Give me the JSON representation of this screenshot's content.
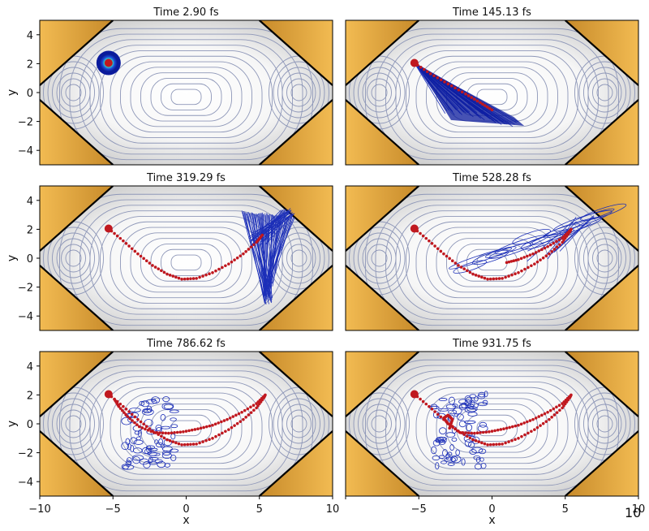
{
  "page_number": "10",
  "colors": {
    "contour": "#8e97b8",
    "wall_fill": "#e5a93a",
    "wall_edge": "#000000",
    "trajectory": "#c0181f",
    "wavepacket": "#1c2fb8",
    "wavepacket_core": "#0a1a9c"
  },
  "chart_data": {
    "type": "contour",
    "panels": [
      {
        "title": "Time    2.90 fs",
        "packet": "gaussian",
        "trajectory": [
          [
            -5.3,
            2.05
          ]
        ]
      },
      {
        "title": "Time    145.13 fs",
        "packet": "fan-compact",
        "trajectory": [
          [
            -5.3,
            2.05
          ],
          [
            -4.2,
            1.3
          ],
          [
            -3.0,
            0.6
          ],
          [
            -1.8,
            -0.1
          ],
          [
            -0.8,
            -0.7
          ],
          [
            0.0,
            -1.2
          ]
        ]
      },
      {
        "title": "Time    319.29 fs",
        "packet": "fan-wide",
        "trajectory": [
          [
            -5.3,
            2.05
          ],
          [
            -4.3,
            1.2
          ],
          [
            -3.3,
            0.3
          ],
          [
            -2.3,
            -0.5
          ],
          [
            -1.3,
            -1.1
          ],
          [
            -0.3,
            -1.45
          ],
          [
            0.7,
            -1.4
          ],
          [
            1.8,
            -1.0
          ],
          [
            2.9,
            -0.4
          ],
          [
            3.9,
            0.3
          ],
          [
            4.8,
            1.1
          ],
          [
            5.2,
            1.6
          ]
        ]
      },
      {
        "title": "Time    528.28 fs",
        "packet": "ribbons",
        "trajectory": [
          [
            -5.3,
            2.05
          ],
          [
            -4.3,
            1.2
          ],
          [
            -3.3,
            0.3
          ],
          [
            -2.3,
            -0.5
          ],
          [
            -1.3,
            -1.1
          ],
          [
            -0.3,
            -1.45
          ],
          [
            0.7,
            -1.4
          ],
          [
            1.8,
            -1.0
          ],
          [
            2.9,
            -0.4
          ],
          [
            3.9,
            0.3
          ],
          [
            4.8,
            1.1
          ],
          [
            5.3,
            1.8
          ],
          [
            5.4,
            2.0
          ],
          [
            4.8,
            1.4
          ],
          [
            3.8,
            0.8
          ],
          [
            2.8,
            0.3
          ],
          [
            1.8,
            -0.1
          ],
          [
            1.0,
            -0.3
          ]
        ]
      },
      {
        "title": "Time    786.62 fs",
        "packet": "scattered-left",
        "trajectory": [
          [
            -5.3,
            2.05
          ],
          [
            -4.3,
            1.2
          ],
          [
            -3.3,
            0.3
          ],
          [
            -2.3,
            -0.5
          ],
          [
            -1.3,
            -1.1
          ],
          [
            -0.3,
            -1.45
          ],
          [
            0.7,
            -1.4
          ],
          [
            1.8,
            -1.0
          ],
          [
            2.9,
            -0.4
          ],
          [
            3.9,
            0.3
          ],
          [
            4.8,
            1.1
          ],
          [
            5.3,
            1.8
          ],
          [
            5.4,
            2.0
          ],
          [
            4.8,
            1.4
          ],
          [
            3.8,
            0.8
          ],
          [
            2.8,
            0.3
          ],
          [
            1.8,
            -0.1
          ],
          [
            0.8,
            -0.35
          ],
          [
            -0.2,
            -0.55
          ],
          [
            -1.2,
            -0.65
          ],
          [
            -2.2,
            -0.6
          ],
          [
            -3.2,
            -0.2
          ],
          [
            -4.0,
            0.5
          ],
          [
            -4.6,
            1.2
          ],
          [
            -4.9,
            1.7
          ]
        ]
      },
      {
        "title": "Time    931.75 fs",
        "packet": "scattered-split",
        "trajectory": [
          [
            -5.3,
            2.05
          ],
          [
            -4.3,
            1.2
          ],
          [
            -3.3,
            0.3
          ],
          [
            -2.3,
            -0.5
          ],
          [
            -1.3,
            -1.1
          ],
          [
            -0.3,
            -1.45
          ],
          [
            0.7,
            -1.4
          ],
          [
            1.8,
            -1.0
          ],
          [
            2.9,
            -0.4
          ],
          [
            3.9,
            0.3
          ],
          [
            4.8,
            1.1
          ],
          [
            5.3,
            1.8
          ],
          [
            5.4,
            2.0
          ],
          [
            4.8,
            1.4
          ],
          [
            3.8,
            0.8
          ],
          [
            2.8,
            0.3
          ],
          [
            1.8,
            -0.1
          ],
          [
            0.8,
            -0.35
          ],
          [
            -0.2,
            -0.55
          ],
          [
            -1.2,
            -0.65
          ],
          [
            -2.2,
            -0.6
          ],
          [
            -3.0,
            0.0
          ],
          [
            -3.3,
            0.4
          ],
          [
            -3.0,
            0.6
          ],
          [
            -2.7,
            0.3
          ],
          [
            -2.9,
            -0.3
          ]
        ]
      }
    ],
    "xlabel": "x",
    "ylabel": "y",
    "xlim": [
      -10,
      10
    ],
    "ylim": [
      -5,
      5
    ],
    "xticks": [
      "−10",
      "−5",
      "0",
      "5",
      "10"
    ],
    "yticks": [
      "4",
      "2",
      "0",
      "−2",
      "−4"
    ],
    "grid": false
  }
}
